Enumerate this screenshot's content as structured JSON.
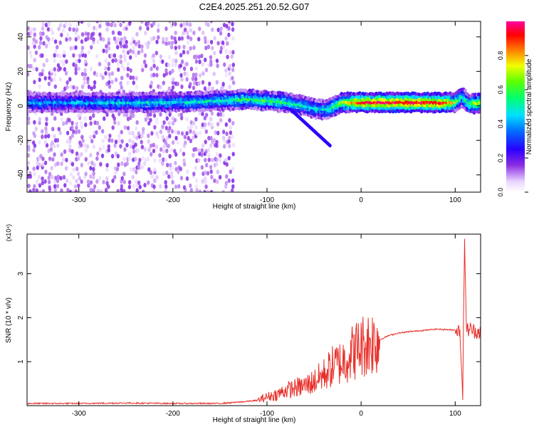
{
  "chart_data": [
    {
      "type": "heatmap",
      "title": "C2E4.2025.251.20.52.G07",
      "xlabel": "Height of straight line (km)",
      "ylabel": "Frequency (Hz)",
      "xlim": [
        -355,
        127
      ],
      "ylim": [
        -50,
        49
      ],
      "xticks": [
        -300,
        -200,
        -100,
        0,
        100
      ],
      "yticks": [
        -40,
        -20,
        0,
        20,
        40
      ],
      "colorbar": {
        "label": "Normalized spectral amplitude",
        "range": [
          0,
          1
        ],
        "ticks": [
          0.0,
          0.2,
          0.4,
          0.6,
          0.8
        ]
      },
      "ridge": {
        "x": [
          -355,
          -300,
          -250,
          -200,
          -150,
          -120,
          -100,
          -80,
          -60,
          -45,
          -35,
          -20,
          0,
          50,
          90,
          100,
          108,
          115,
          127
        ],
        "freq": [
          2,
          2,
          2,
          2,
          3,
          4,
          3,
          2,
          0,
          -2,
          -2,
          2,
          2,
          2,
          2,
          2,
          5,
          1,
          2
        ],
        "amplitude": [
          0.4,
          0.4,
          0.45,
          0.45,
          0.5,
          0.55,
          0.6,
          0.55,
          0.5,
          0.45,
          0.5,
          0.7,
          0.9,
          0.95,
          0.9,
          0.7,
          0.5,
          0.6,
          0.7
        ]
      }
    },
    {
      "type": "line",
      "xlabel": "Height of straight line (km)",
      "ylabel": "SNR (10 * v/v)",
      "y_multiplier": "(x10⁴)",
      "xlim": [
        -355,
        127
      ],
      "ylim": [
        0,
        3.9
      ],
      "xticks": [
        -300,
        -200,
        -100,
        0,
        100
      ],
      "yticks": [
        1,
        2,
        3
      ],
      "series": [
        {
          "name": "SNR",
          "color": "#e8302a",
          "x": [
            -355,
            -300,
            -250,
            -200,
            -150,
            -130,
            -110,
            -100,
            -90,
            -80,
            -70,
            -60,
            -50,
            -40,
            -30,
            -20,
            -10,
            0,
            10,
            20,
            30,
            40,
            50,
            60,
            70,
            80,
            90,
            100,
            105,
            108,
            110,
            112,
            115,
            120,
            127
          ],
          "y": [
            0.05,
            0.05,
            0.06,
            0.05,
            0.05,
            0.08,
            0.12,
            0.2,
            0.25,
            0.35,
            0.4,
            0.45,
            0.55,
            0.7,
            0.9,
            1.0,
            1.2,
            1.35,
            1.45,
            1.5,
            1.6,
            1.65,
            1.68,
            1.7,
            1.72,
            1.74,
            1.73,
            1.72,
            1.7,
            0.3,
            3.8,
            1.7,
            1.75,
            1.7,
            1.68
          ]
        }
      ]
    }
  ]
}
